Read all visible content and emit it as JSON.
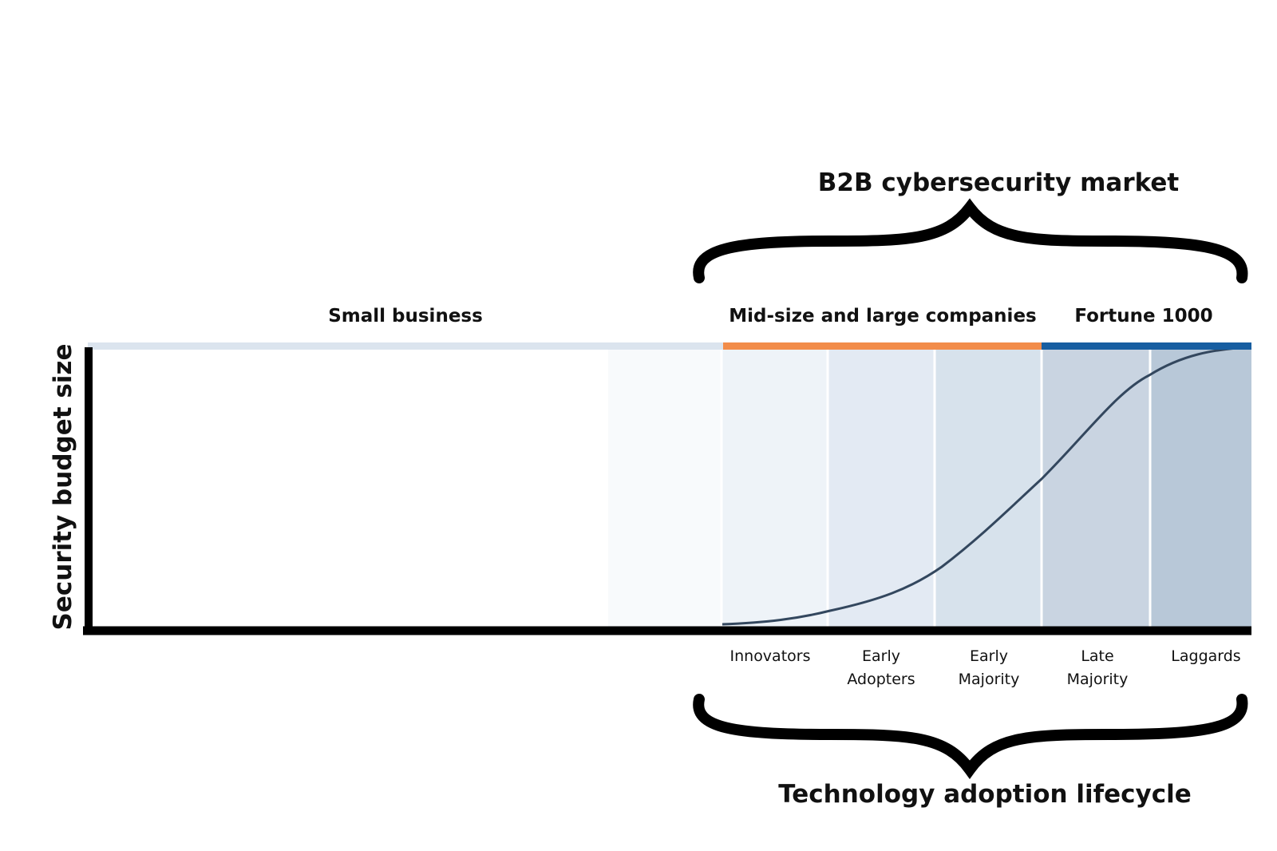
{
  "title": "B2B cybersecurity market",
  "segments": [
    "Small business",
    "Mid-size and large companies",
    "Fortune 1000"
  ],
  "y_axis_label": "Security budget size",
  "stages": [
    [
      "Innovators"
    ],
    [
      "Early",
      "Adopters"
    ],
    [
      "Early",
      "Majority"
    ],
    [
      "Late",
      "Majority"
    ],
    [
      "Laggards"
    ]
  ],
  "bottom_label": "Technology adoption lifecycle"
}
